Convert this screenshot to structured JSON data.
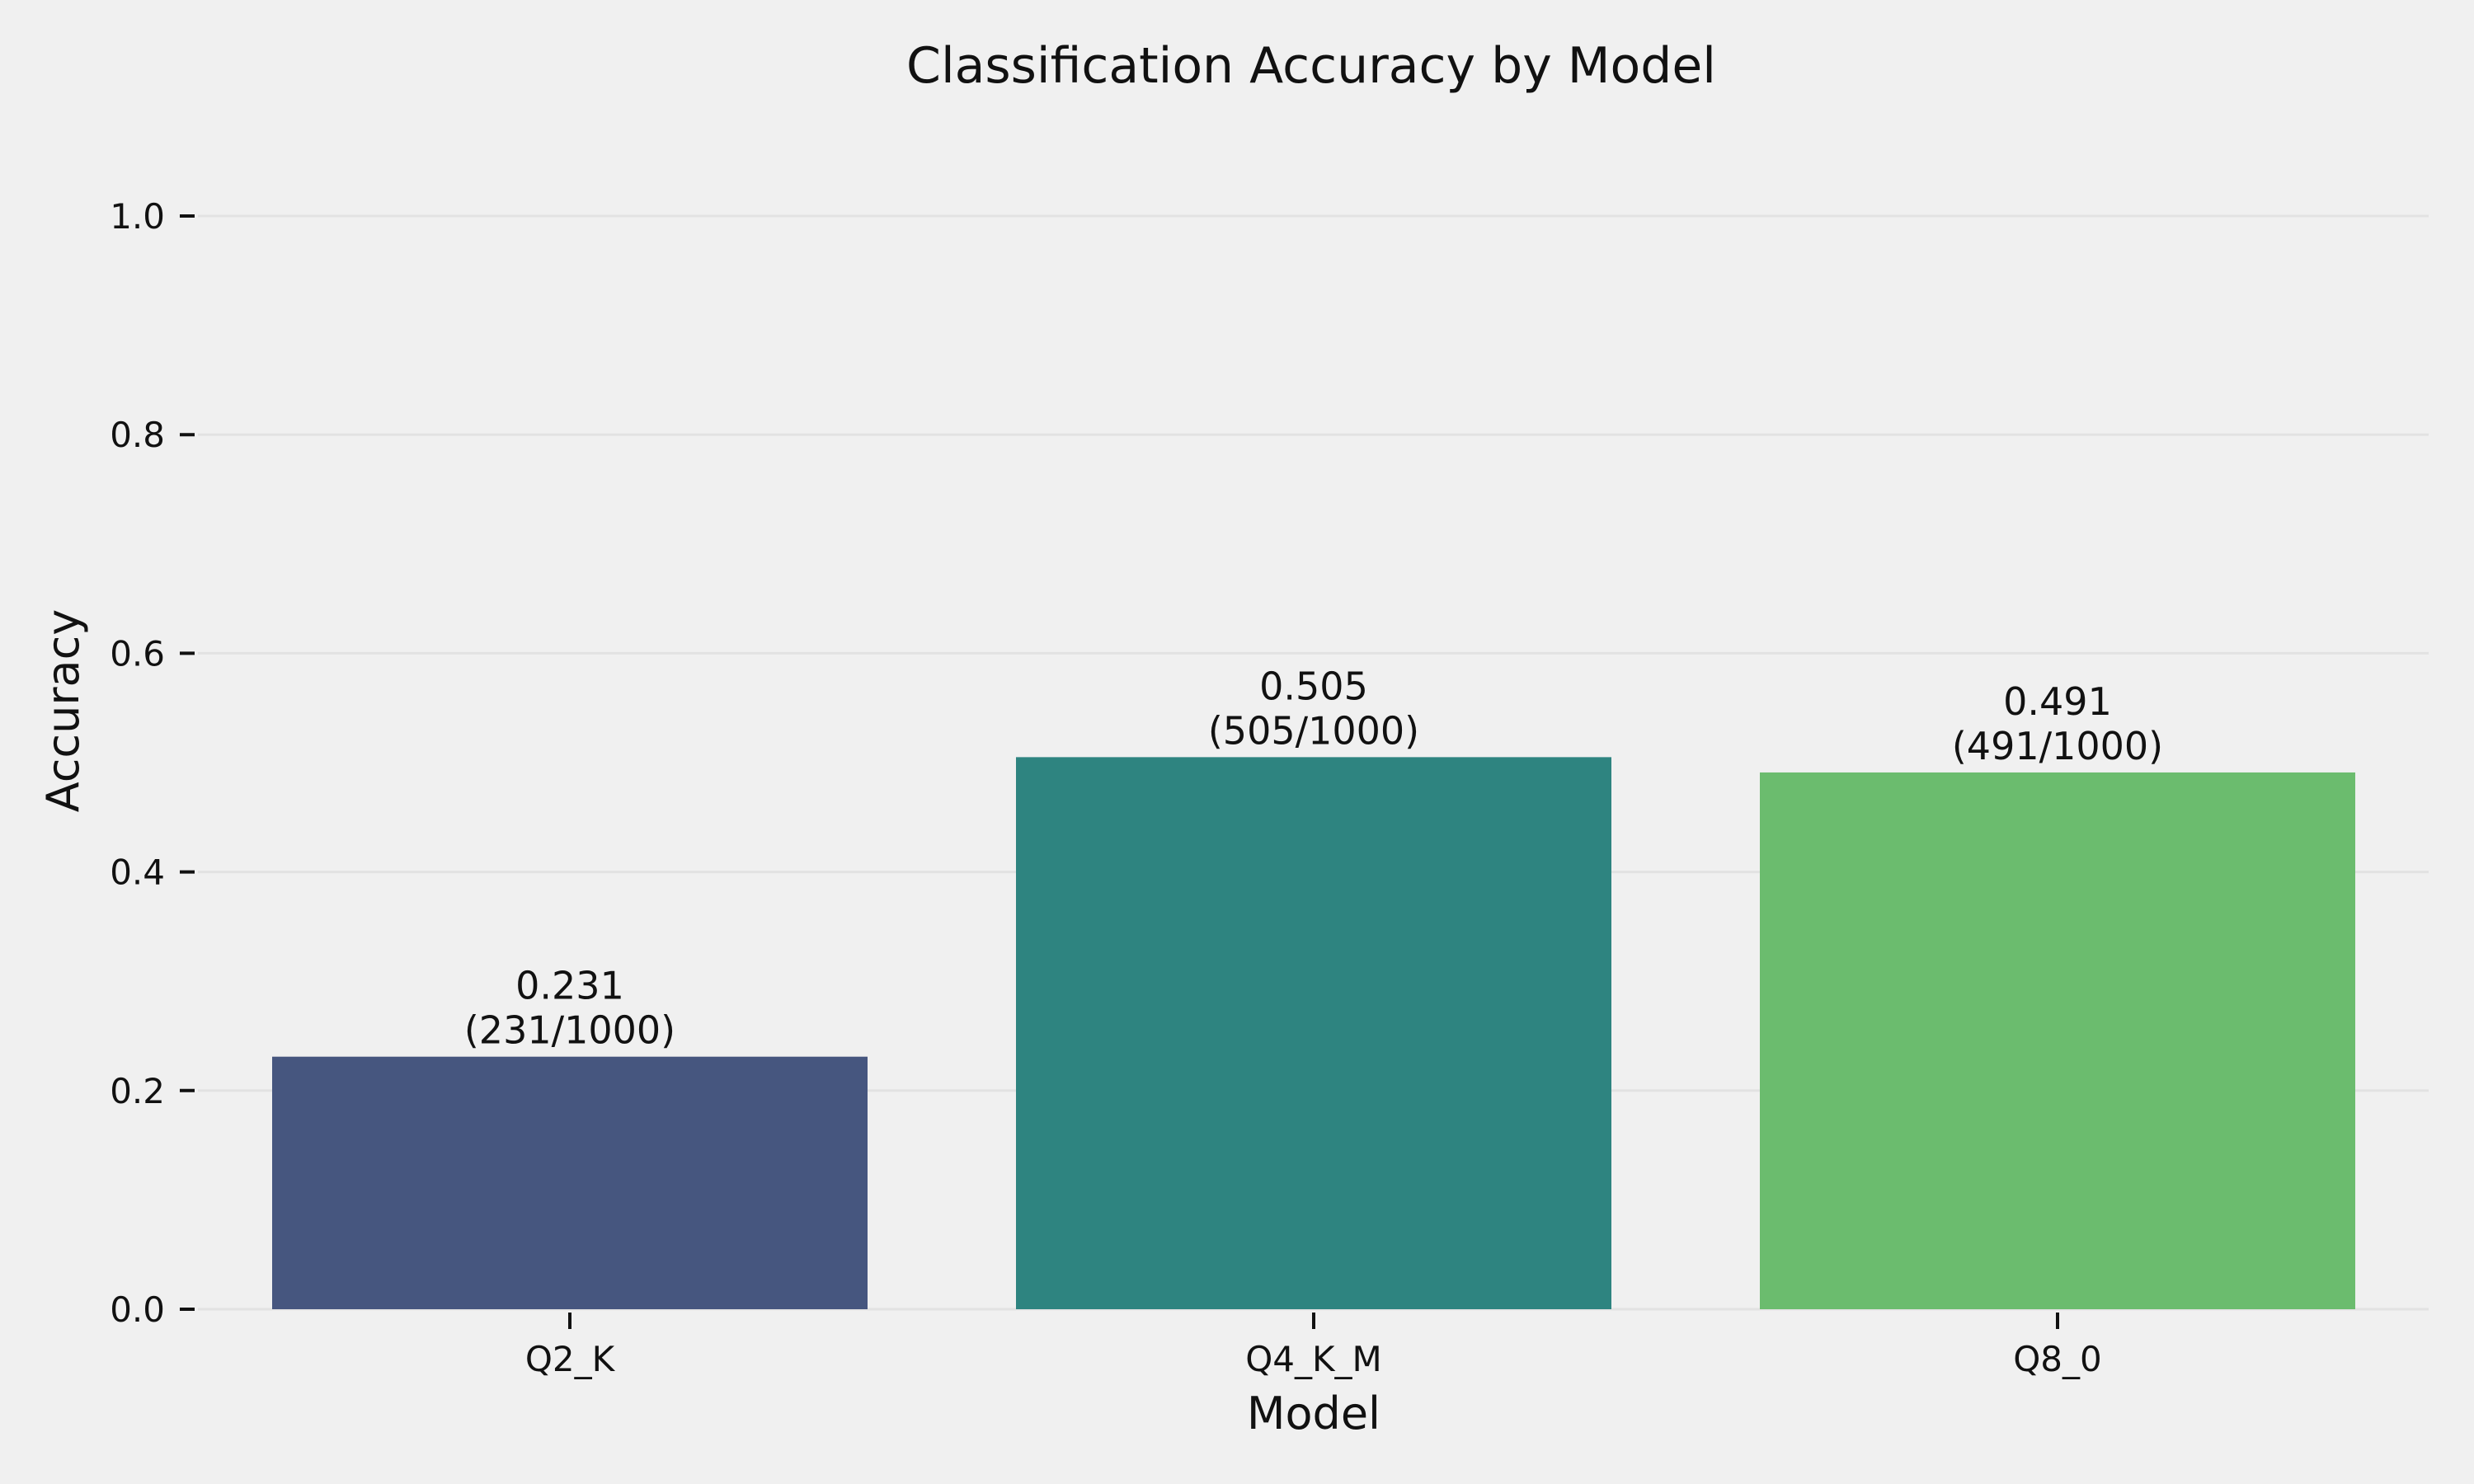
{
  "chart_data": {
    "type": "bar",
    "title": "Classification Accuracy by Model",
    "xlabel": "Model",
    "ylabel": "Accuracy",
    "categories": [
      "Q2_K",
      "Q4_K_M",
      "Q8_0"
    ],
    "values": [
      0.231,
      0.505,
      0.491
    ],
    "data_labels": [
      [
        "0.231",
        "(231/1000)"
      ],
      [
        "0.505",
        "(505/1000)"
      ],
      [
        "0.491",
        "(491/1000)"
      ]
    ],
    "colors": [
      "#46567f",
      "#2e8480",
      "#6bbc6e"
    ],
    "ylim": [
      0,
      1.0
    ],
    "yticks": [
      0.0,
      0.2,
      0.4,
      0.6,
      0.8,
      1.0
    ],
    "ytick_labels": [
      "0.0",
      "0.2",
      "0.4",
      "0.6",
      "0.8",
      "1.0"
    ],
    "grid": "horizontal",
    "background": "#f0f0f0",
    "grid_color": "#e2e2e2"
  }
}
